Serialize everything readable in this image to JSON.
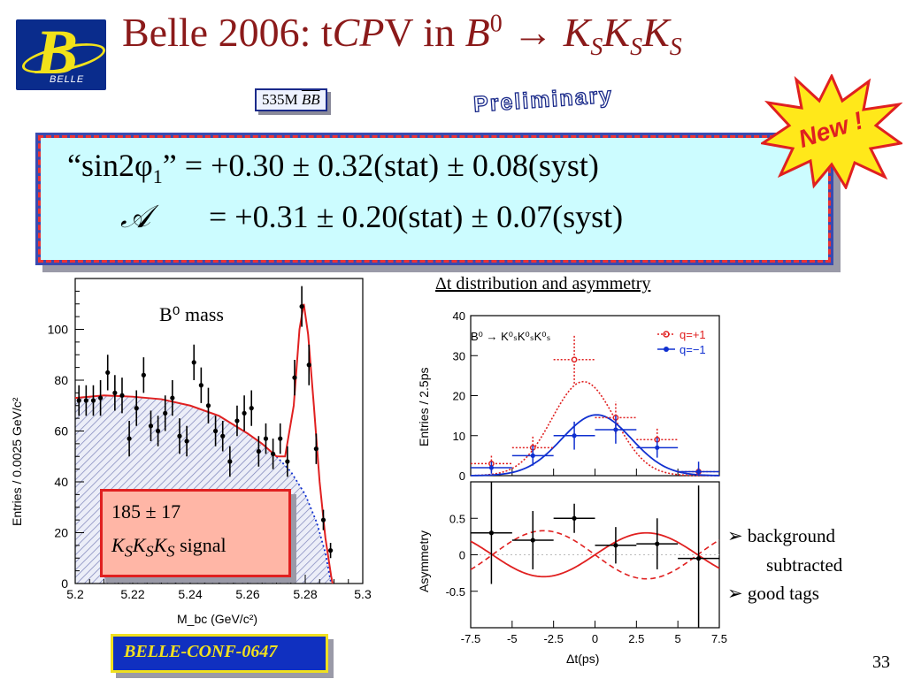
{
  "logo": {
    "text": "BELLE"
  },
  "title": {
    "prefix": "Belle 2006: t",
    "cpv": "CP",
    "v": "V in ",
    "b": "B",
    "b_sup": "0",
    "arrow": " → ",
    "k": "K",
    "sub": "S"
  },
  "sample": {
    "n": "535M ",
    "bb": "BB"
  },
  "preliminary": "Preliminary",
  "new_badge": "New !",
  "results": {
    "line1_label": "“sin2φ",
    "line1_sub": "1",
    "line1_rest": "” = +0.30 ± 0.32(stat) ± 0.08(syst)",
    "line2_label": "𝒜",
    "line2_rest": "= +0.31 ± 0.20(stat) ± 0.07(syst)"
  },
  "dt_title": "Δt distribution and asymmetry",
  "signal": {
    "yield": "185 ± 17",
    "k": "K",
    "sub": "S",
    "word": " signal"
  },
  "notes": [
    "➢ background",
    "subtracted",
    "➢ good tags"
  ],
  "conf": "BELLE-CONF-0647",
  "page_number": "33",
  "colors": {
    "title": "#8b1a1a",
    "result_bg": "#ccfcff",
    "qplus": "#e02020",
    "qminus": "#1030d0"
  },
  "chart_data": [
    {
      "type": "scatter",
      "annotation": "B⁰ mass",
      "xlabel": "M_bc (GeV/c²)",
      "ylabel": "Entries / 0.0025 GeV/c²",
      "xlim": [
        5.2,
        5.3
      ],
      "ylim": [
        0,
        120
      ],
      "xticks": [
        5.2,
        5.22,
        5.24,
        5.26,
        5.28,
        5.3
      ],
      "xtick_labels": [
        "5.2",
        "5.22",
        "5.24",
        "5.26",
        "5.28",
        "5.3"
      ],
      "yticks": [
        0,
        20,
        40,
        60,
        80,
        100
      ],
      "ytick_labels": [
        "0",
        "20",
        "40",
        "60",
        "80",
        "100"
      ],
      "points": [
        {
          "x": 5.2013,
          "y": 72,
          "e": 6
        },
        {
          "x": 5.2038,
          "y": 72,
          "e": 6
        },
        {
          "x": 5.2063,
          "y": 72,
          "e": 6
        },
        {
          "x": 5.2088,
          "y": 73,
          "e": 7
        },
        {
          "x": 5.2113,
          "y": 83,
          "e": 7
        },
        {
          "x": 5.2138,
          "y": 75,
          "e": 7
        },
        {
          "x": 5.2163,
          "y": 74,
          "e": 7
        },
        {
          "x": 5.2188,
          "y": 57,
          "e": 7
        },
        {
          "x": 5.2213,
          "y": 69,
          "e": 7
        },
        {
          "x": 5.2238,
          "y": 82,
          "e": 7
        },
        {
          "x": 5.2263,
          "y": 62,
          "e": 6
        },
        {
          "x": 5.2288,
          "y": 60,
          "e": 6
        },
        {
          "x": 5.2313,
          "y": 67,
          "e": 7
        },
        {
          "x": 5.2338,
          "y": 73,
          "e": 7
        },
        {
          "x": 5.2363,
          "y": 58,
          "e": 7
        },
        {
          "x": 5.2388,
          "y": 56,
          "e": 6
        },
        {
          "x": 5.2413,
          "y": 87,
          "e": 7
        },
        {
          "x": 5.2438,
          "y": 78,
          "e": 7
        },
        {
          "x": 5.2463,
          "y": 70,
          "e": 7
        },
        {
          "x": 5.2488,
          "y": 60,
          "e": 6
        },
        {
          "x": 5.2513,
          "y": 58,
          "e": 6
        },
        {
          "x": 5.2538,
          "y": 48,
          "e": 6
        },
        {
          "x": 5.2563,
          "y": 64,
          "e": 6
        },
        {
          "x": 5.2588,
          "y": 67,
          "e": 7
        },
        {
          "x": 5.2613,
          "y": 69,
          "e": 7
        },
        {
          "x": 5.2638,
          "y": 52,
          "e": 6
        },
        {
          "x": 5.2663,
          "y": 57,
          "e": 6
        },
        {
          "x": 5.2688,
          "y": 51,
          "e": 6
        },
        {
          "x": 5.2713,
          "y": 57,
          "e": 6
        },
        {
          "x": 5.2738,
          "y": 48,
          "e": 6
        },
        {
          "x": 5.2763,
          "y": 81,
          "e": 7
        },
        {
          "x": 5.2788,
          "y": 109,
          "e": 8
        },
        {
          "x": 5.2813,
          "y": 86,
          "e": 8
        },
        {
          "x": 5.2838,
          "y": 53,
          "e": 6
        },
        {
          "x": 5.2863,
          "y": 25,
          "e": 4
        },
        {
          "x": 5.2888,
          "y": 13,
          "e": 3
        }
      ],
      "curve": [
        [
          5.2,
          73
        ],
        [
          5.21,
          74
        ],
        [
          5.22,
          73.5
        ],
        [
          5.23,
          72.5
        ],
        [
          5.24,
          70
        ],
        [
          5.25,
          66
        ],
        [
          5.26,
          59
        ],
        [
          5.265,
          55
        ],
        [
          5.27,
          50
        ],
        [
          5.273,
          50
        ],
        [
          5.276,
          70
        ],
        [
          5.278,
          100
        ],
        [
          5.2795,
          110
        ],
        [
          5.281,
          98
        ],
        [
          5.283,
          70
        ],
        [
          5.285,
          40
        ],
        [
          5.287,
          18
        ],
        [
          5.289,
          3
        ],
        [
          5.2895,
          0
        ]
      ]
    },
    {
      "type": "scatter",
      "annotation": "B⁰ → K⁰ₛK⁰ₛK⁰ₛ",
      "ylabel": "Entries / 2.5ps",
      "xlim": [
        -7.5,
        7.5
      ],
      "ylim": [
        0,
        40
      ],
      "yticks": [
        0,
        10,
        20,
        30,
        40
      ],
      "ytick_labels": [
        "0",
        "10",
        "20",
        "30",
        "40"
      ],
      "series": [
        {
          "name": "q=+1",
          "color": "#e02020",
          "points": [
            {
              "x": -6.25,
              "y": 3,
              "e": 2
            },
            {
              "x": -3.75,
              "y": 7,
              "e": 3
            },
            {
              "x": -1.25,
              "y": 29,
              "e": 6
            },
            {
              "x": 1.25,
              "y": 14.5,
              "e": 4
            },
            {
              "x": 3.75,
              "y": 9,
              "e": 3
            },
            {
              "x": 6.25,
              "y": 1,
              "e": 1
            }
          ]
        },
        {
          "name": "q=−1",
          "color": "#1030d0",
          "points": [
            {
              "x": -6.25,
              "y": 2,
              "e": 1.5
            },
            {
              "x": -3.75,
              "y": 5,
              "e": 2.5
            },
            {
              "x": -1.25,
              "y": 10,
              "e": 3.5
            },
            {
              "x": 1.25,
              "y": 11.5,
              "e": 3.5
            },
            {
              "x": 3.75,
              "y": 7,
              "e": 2.5
            },
            {
              "x": 6.25,
              "y": 1,
              "e": 2.5
            }
          ]
        }
      ]
    },
    {
      "type": "scatter",
      "ylabel": "Asymmetry",
      "xlabel": "Δt(ps)",
      "xlim": [
        -7.5,
        7.5
      ],
      "ylim": [
        -1,
        1
      ],
      "xticks": [
        -7.5,
        -5,
        -2.5,
        0,
        2.5,
        5,
        7.5
      ],
      "xtick_labels": [
        "-7.5",
        "-5",
        "-2.5",
        "0",
        "2.5",
        "5",
        "7.5"
      ],
      "yticks": [
        -0.5,
        0,
        0.5
      ],
      "ytick_labels": [
        "-0.5",
        "0",
        "0.5"
      ],
      "points": [
        {
          "x": -6.25,
          "y": 0.3,
          "e": 0.7
        },
        {
          "x": -3.75,
          "y": 0.2,
          "e": 0.4
        },
        {
          "x": -1.25,
          "y": 0.5,
          "e": 0.2
        },
        {
          "x": 1.25,
          "y": 0.13,
          "e": 0.25
        },
        {
          "x": 3.75,
          "y": 0.15,
          "e": 0.35
        },
        {
          "x": 6.25,
          "y": -0.05,
          "e": 1.0
        }
      ]
    }
  ]
}
